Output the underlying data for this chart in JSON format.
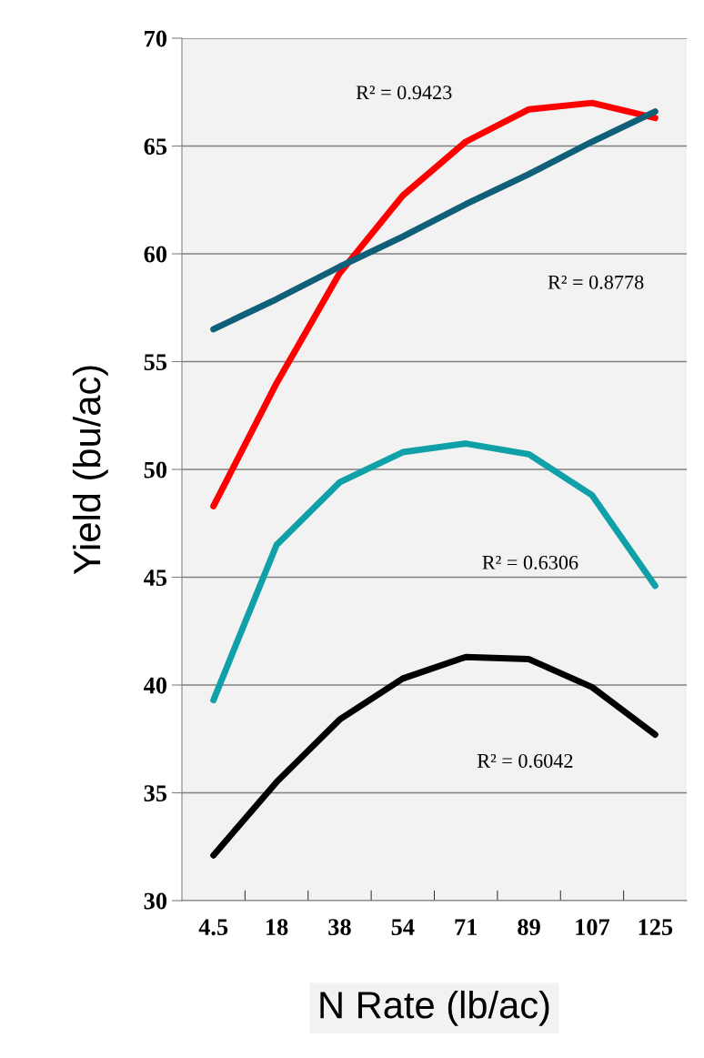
{
  "chart_data": {
    "type": "line",
    "xlabel": "N Rate (lb/ac)",
    "ylabel": "Yield (bu/ac)",
    "categories": [
      "4.5",
      "18",
      "38",
      "54",
      "71",
      "89",
      "107",
      "125"
    ],
    "series": [
      {
        "color": "#ff0000",
        "values": [
          48.3,
          54.0,
          59.1,
          62.7,
          65.2,
          66.7,
          67.0,
          66.3
        ]
      },
      {
        "color": "#0f5f78",
        "values": [
          56.5,
          57.9,
          59.4,
          60.8,
          62.3,
          63.7,
          65.2,
          66.6
        ]
      },
      {
        "color": "#10a0a8",
        "values": [
          39.3,
          46.5,
          49.4,
          50.8,
          51.2,
          50.7,
          48.8,
          44.6
        ]
      },
      {
        "color": "#000000",
        "values": [
          32.1,
          35.5,
          38.4,
          40.3,
          41.3,
          41.2,
          39.9,
          37.7
        ]
      }
    ],
    "ylim": [
      30,
      70
    ],
    "yticks": [
      30,
      35,
      40,
      45,
      50,
      55,
      60,
      65,
      70
    ],
    "grid": "y",
    "legend": false,
    "marker": "none",
    "line_style": "solid",
    "annotations": [
      "R² = 0.9423",
      "R² = 0.8778",
      "R² = 0.6306",
      "R² = 0.6042"
    ]
  }
}
